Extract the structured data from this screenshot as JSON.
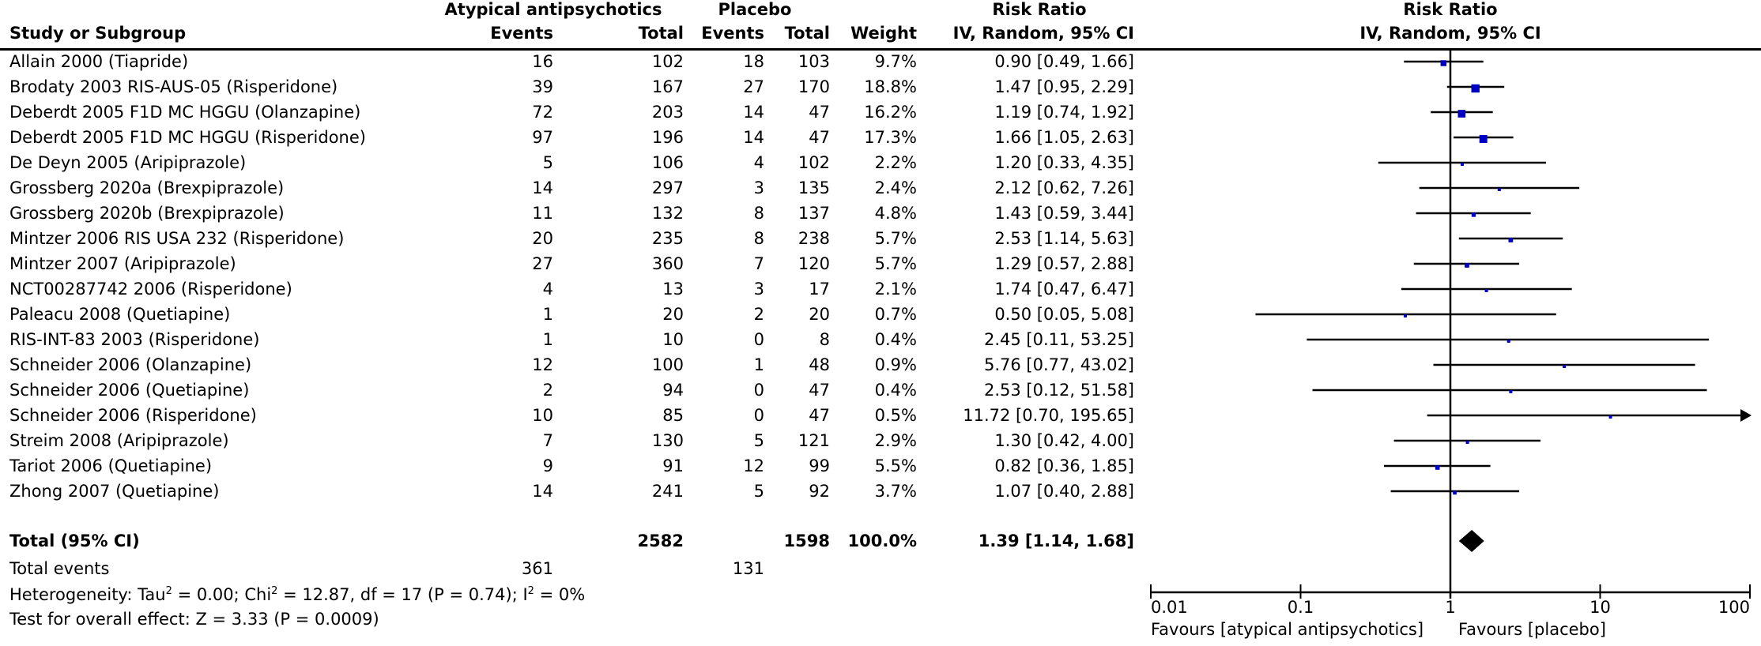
{
  "header": {
    "study_col": "Study or Subgroup",
    "group1": "Atypical antipsychotics",
    "group2": "Placebo",
    "events": "Events",
    "total": "Total",
    "weight": "Weight",
    "rr_title": "Risk Ratio",
    "rr_method": "IV, Random, 95% CI",
    "plot_title": "Risk Ratio",
    "plot_method": "IV, Random, 95% CI"
  },
  "studies": [
    {
      "name": "Allain 2000 (Tiapride)",
      "e1": "16",
      "n1": "102",
      "e2": "18",
      "n2": "103",
      "weight": "9.7%",
      "rr_text": "0.90 [0.49, 1.66]",
      "rr": 0.9,
      "lo": 0.49,
      "hi": 1.66,
      "w": 9.7
    },
    {
      "name": "Brodaty 2003 RIS-AUS-05 (Risperidone)",
      "e1": "39",
      "n1": "167",
      "e2": "27",
      "n2": "170",
      "weight": "18.8%",
      "rr_text": "1.47 [0.95, 2.29]",
      "rr": 1.47,
      "lo": 0.95,
      "hi": 2.29,
      "w": 18.8
    },
    {
      "name": "Deberdt 2005 F1D MC HGGU (Olanzapine)",
      "e1": "72",
      "n1": "203",
      "e2": "14",
      "n2": "47",
      "weight": "16.2%",
      "rr_text": "1.19 [0.74, 1.92]",
      "rr": 1.19,
      "lo": 0.74,
      "hi": 1.92,
      "w": 16.2
    },
    {
      "name": "Deberdt 2005 F1D MC HGGU (Risperidone)",
      "e1": "97",
      "n1": "196",
      "e2": "14",
      "n2": "47",
      "weight": "17.3%",
      "rr_text": "1.66 [1.05, 2.63]",
      "rr": 1.66,
      "lo": 1.05,
      "hi": 2.63,
      "w": 17.3
    },
    {
      "name": "De Deyn 2005 (Aripiprazole)",
      "e1": "5",
      "n1": "106",
      "e2": "4",
      "n2": "102",
      "weight": "2.2%",
      "rr_text": "1.20 [0.33, 4.35]",
      "rr": 1.2,
      "lo": 0.33,
      "hi": 4.35,
      "w": 2.2
    },
    {
      "name": "Grossberg 2020a (Brexpiprazole)",
      "e1": "14",
      "n1": "297",
      "e2": "3",
      "n2": "135",
      "weight": "2.4%",
      "rr_text": "2.12 [0.62, 7.26]",
      "rr": 2.12,
      "lo": 0.62,
      "hi": 7.26,
      "w": 2.4
    },
    {
      "name": "Grossberg 2020b (Brexpiprazole)",
      "e1": "11",
      "n1": "132",
      "e2": "8",
      "n2": "137",
      "weight": "4.8%",
      "rr_text": "1.43 [0.59, 3.44]",
      "rr": 1.43,
      "lo": 0.59,
      "hi": 3.44,
      "w": 4.8
    },
    {
      "name": "Mintzer 2006 RIS USA 232 (Risperidone)",
      "e1": "20",
      "n1": "235",
      "e2": "8",
      "n2": "238",
      "weight": "5.7%",
      "rr_text": "2.53 [1.14, 5.63]",
      "rr": 2.53,
      "lo": 1.14,
      "hi": 5.63,
      "w": 5.7
    },
    {
      "name": "Mintzer 2007 (Aripiprazole)",
      "e1": "27",
      "n1": "360",
      "e2": "7",
      "n2": "120",
      "weight": "5.7%",
      "rr_text": "1.29 [0.57, 2.88]",
      "rr": 1.29,
      "lo": 0.57,
      "hi": 2.88,
      "w": 5.7
    },
    {
      "name": "NCT00287742  2006 (Risperidone)",
      "e1": "4",
      "n1": "13",
      "e2": "3",
      "n2": "17",
      "weight": "2.1%",
      "rr_text": "1.74 [0.47, 6.47]",
      "rr": 1.74,
      "lo": 0.47,
      "hi": 6.47,
      "w": 2.1
    },
    {
      "name": "Paleacu 2008 (Quetiapine)",
      "e1": "1",
      "n1": "20",
      "e2": "2",
      "n2": "20",
      "weight": "0.7%",
      "rr_text": "0.50 [0.05, 5.08]",
      "rr": 0.5,
      "lo": 0.05,
      "hi": 5.08,
      "w": 0.7
    },
    {
      "name": "RIS-INT-83 2003 (Risperidone)",
      "e1": "1",
      "n1": "10",
      "e2": "0",
      "n2": "8",
      "weight": "0.4%",
      "rr_text": "2.45 [0.11, 53.25]",
      "rr": 2.45,
      "lo": 0.11,
      "hi": 53.25,
      "w": 0.4
    },
    {
      "name": "Schneider 2006 (Olanzapine)",
      "e1": "12",
      "n1": "100",
      "e2": "1",
      "n2": "48",
      "weight": "0.9%",
      "rr_text": "5.76 [0.77, 43.02]",
      "rr": 5.76,
      "lo": 0.77,
      "hi": 43.02,
      "w": 0.9
    },
    {
      "name": "Schneider 2006 (Quetiapine)",
      "e1": "2",
      "n1": "94",
      "e2": "0",
      "n2": "47",
      "weight": "0.4%",
      "rr_text": "2.53 [0.12, 51.58]",
      "rr": 2.53,
      "lo": 0.12,
      "hi": 51.58,
      "w": 0.4
    },
    {
      "name": "Schneider 2006 (Risperidone)",
      "e1": "10",
      "n1": "85",
      "e2": "0",
      "n2": "47",
      "weight": "0.5%",
      "rr_text": "11.72 [0.70, 195.65]",
      "rr": 11.72,
      "lo": 0.7,
      "hi": 195.65,
      "w": 0.5
    },
    {
      "name": "Streim 2008 (Aripiprazole)",
      "e1": "7",
      "n1": "130",
      "e2": "5",
      "n2": "121",
      "weight": "2.9%",
      "rr_text": "1.30 [0.42, 4.00]",
      "rr": 1.3,
      "lo": 0.42,
      "hi": 4.0,
      "w": 2.9
    },
    {
      "name": "Tariot 2006 (Quetiapine)",
      "e1": "9",
      "n1": "91",
      "e2": "12",
      "n2": "99",
      "weight": "5.5%",
      "rr_text": "0.82 [0.36, 1.85]",
      "rr": 0.82,
      "lo": 0.36,
      "hi": 1.85,
      "w": 5.5
    },
    {
      "name": "Zhong 2007 (Quetiapine)",
      "e1": "14",
      "n1": "241",
      "e2": "5",
      "n2": "92",
      "weight": "3.7%",
      "rr_text": "1.07 [0.40, 2.88]",
      "rr": 1.07,
      "lo": 0.4,
      "hi": 2.88,
      "w": 3.7
    }
  ],
  "total": {
    "label": "Total (95% CI)",
    "n1": "2582",
    "n2": "1598",
    "weight": "100.0%",
    "rr_text": "1.39 [1.14, 1.68]",
    "rr": 1.39,
    "lo": 1.14,
    "hi": 1.68
  },
  "total_events": {
    "label": "Total events",
    "e1": "361",
    "e2": "131"
  },
  "heterogeneity": {
    "prefix": "Heterogeneity: Tau",
    "sup1": "2",
    "mid1": " = 0.00; Chi",
    "sup2": "2",
    "mid2": " = 12.87, df = 17 (P = 0.74); I",
    "sup3": "2",
    "end": " = 0%"
  },
  "overall_effect": "Test for overall effect: Z = 3.33 (P = 0.0009)",
  "axis": {
    "ticks": [
      "0.01",
      "0.1",
      "1",
      "10",
      "100"
    ],
    "favours_left": "Favours [atypical antipsychotics]",
    "favours_right": "Favours [placebo]"
  },
  "colors": {
    "square": "#0000c0",
    "line": "#000000",
    "diamond": "#000000"
  },
  "chart_data": {
    "type": "forest",
    "title": "Risk Ratio IV, Random, 95% CI",
    "xscale": "log",
    "xlim": [
      0.01,
      100
    ],
    "xticks": [
      0.01,
      0.1,
      1,
      10,
      100
    ],
    "xlabel_left": "Favours [atypical antipsychotics]",
    "xlabel_right": "Favours [placebo]",
    "categories": [
      "Allain 2000 (Tiapride)",
      "Brodaty 2003 RIS-AUS-05 (Risperidone)",
      "Deberdt 2005 F1D MC HGGU (Olanzapine)",
      "Deberdt 2005 F1D MC HGGU (Risperidone)",
      "De Deyn 2005 (Aripiprazole)",
      "Grossberg 2020a (Brexpiprazole)",
      "Grossberg 2020b (Brexpiprazole)",
      "Mintzer 2006 RIS USA 232 (Risperidone)",
      "Mintzer 2007 (Aripiprazole)",
      "NCT00287742  2006 (Risperidone)",
      "Paleacu 2008 (Quetiapine)",
      "RIS-INT-83 2003 (Risperidone)",
      "Schneider 2006 (Olanzapine)",
      "Schneider 2006 (Quetiapine)",
      "Schneider 2006 (Risperidone)",
      "Streim 2008 (Aripiprazole)",
      "Tariot 2006 (Quetiapine)",
      "Zhong 2007 (Quetiapine)"
    ],
    "series": [
      {
        "name": "Risk Ratio",
        "values": [
          0.9,
          1.47,
          1.19,
          1.66,
          1.2,
          2.12,
          1.43,
          2.53,
          1.29,
          1.74,
          0.5,
          2.45,
          5.76,
          2.53,
          11.72,
          1.3,
          0.82,
          1.07
        ]
      },
      {
        "name": "CI lower",
        "values": [
          0.49,
          0.95,
          0.74,
          1.05,
          0.33,
          0.62,
          0.59,
          1.14,
          0.57,
          0.47,
          0.05,
          0.11,
          0.77,
          0.12,
          0.7,
          0.42,
          0.36,
          0.4
        ]
      },
      {
        "name": "CI upper",
        "values": [
          1.66,
          2.29,
          1.92,
          2.63,
          4.35,
          7.26,
          3.44,
          5.63,
          2.88,
          6.47,
          5.08,
          53.25,
          43.02,
          51.58,
          195.65,
          4.0,
          1.85,
          2.88
        ]
      },
      {
        "name": "Weight %",
        "values": [
          9.7,
          18.8,
          16.2,
          17.3,
          2.2,
          2.4,
          4.8,
          5.7,
          5.7,
          2.1,
          0.7,
          0.4,
          0.9,
          0.4,
          0.5,
          2.9,
          5.5,
          3.7
        ]
      }
    ],
    "pooled": {
      "rr": 1.39,
      "lo": 1.14,
      "hi": 1.68
    }
  }
}
